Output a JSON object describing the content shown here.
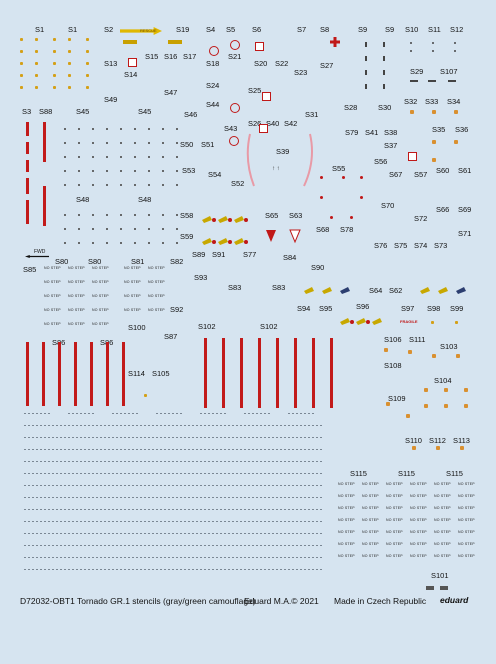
{
  "labels": {
    "S1a": "S1",
    "S1b": "S1",
    "S2": "S2",
    "S19": "S19",
    "S4": "S4",
    "S5": "S5",
    "S6": "S6",
    "S7": "S7",
    "S8": "S8",
    "S9a": "S9",
    "S9b": "S9",
    "S10": "S10",
    "S11": "S11",
    "S12": "S12",
    "S13": "S13",
    "S14": "S14",
    "S15": "S15",
    "S16": "S16",
    "S17": "S17",
    "S18": "S18",
    "S21": "S21",
    "S20": "S20",
    "S22": "S22",
    "S27": "S27",
    "S29": "S29",
    "S107": "S107",
    "S47": "S47",
    "S49": "S49",
    "S24": "S24",
    "S25": "S25",
    "S44": "S44",
    "S23": "S23",
    "S32": "S32",
    "S33": "S33",
    "S34": "S34",
    "S28": "S28",
    "S30": "S30",
    "S3": "S3",
    "S88": "S88",
    "S45a": "S45",
    "S45b": "S45",
    "S46": "S46",
    "S26": "S26",
    "S40": "S40",
    "S42": "S42",
    "S31": "S31",
    "S43": "S43",
    "S79": "S79",
    "S41": "S41",
    "S38": "S38",
    "S35": "S35",
    "S36": "S36",
    "S50": "S50",
    "S51": "S51",
    "S39": "S39",
    "S37": "S37",
    "S56": "S56",
    "S53": "S53",
    "S54": "S54",
    "S55": "S55",
    "S67": "S67",
    "S57": "S57",
    "S60": "S60",
    "S61": "S61",
    "S52": "S52",
    "S48a": "S48",
    "S48b": "S48",
    "S70": "S70",
    "S66": "S66",
    "S69": "S69",
    "S58": "S58",
    "S65": "S65",
    "S63": "S63",
    "S72": "S72",
    "S68": "S68",
    "S78": "S78",
    "S71": "S71",
    "S59": "S59",
    "S76": "S76",
    "S75": "S75",
    "S74": "S74",
    "S73": "S73",
    "S89": "S89",
    "S91": "S91",
    "S77": "S77",
    "S84": "S84",
    "S80a": "S80",
    "S80b": "S80",
    "S81": "S81",
    "S82": "S82",
    "S90": "S90",
    "S85": "S85",
    "S93": "S93",
    "S83a": "S83",
    "S83b": "S83",
    "S64": "S64",
    "S62": "S62",
    "S92": "S92",
    "S94": "S94",
    "S95": "S95",
    "S96": "S96",
    "S97": "S97",
    "S98": "S98",
    "S99": "S99",
    "S100": "S100",
    "S87": "S87",
    "S102a": "S102",
    "S102b": "S102",
    "S86a": "S86",
    "S86b": "S86",
    "S106": "S106",
    "S111": "S111",
    "S103": "S103",
    "S108": "S108",
    "S114": "S114",
    "S105": "S105",
    "S104": "S104",
    "S109": "S109",
    "S110": "S110",
    "S112": "S112",
    "S113": "S113",
    "S115a": "S115",
    "S115b": "S115",
    "S115c": "S115",
    "S101": "S101"
  },
  "stencil_texts": {
    "no_step": "NO STEP",
    "fwd": "FWD",
    "rescue": "RESCUE",
    "fragile": "FRAGILE"
  },
  "footer": {
    "product": "D72032-OBT1 Tornado GR.1 stencils (gray/green camouflage)",
    "copyright": "Eduard M.A.© 2021",
    "origin": "Made in Czech Republic",
    "brand": "eduard"
  },
  "colors": {
    "sheet_background": "#d6e4f0",
    "stencil_red": "#c21a1a",
    "stencil_yellow": "#d4a017",
    "stencil_black": "#222222"
  }
}
